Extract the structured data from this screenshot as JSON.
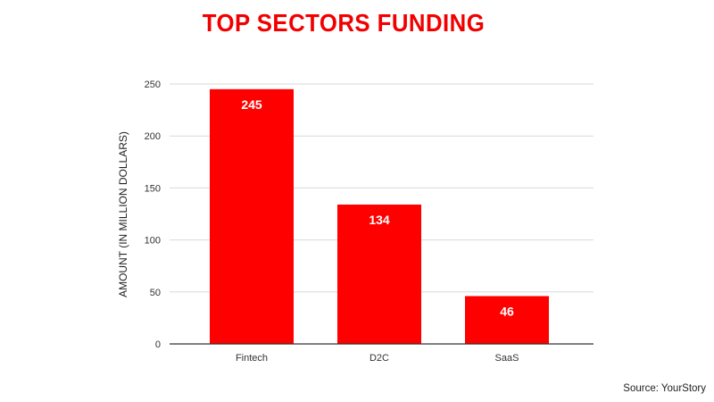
{
  "title": "TOP SECTORS FUNDING",
  "source": "Source: YourStory",
  "colors": {
    "bar": "#ff0000",
    "title": "#f20000",
    "grid": "#d9d9d9",
    "axis": "#333333"
  },
  "chart_data": {
    "type": "bar",
    "title": "TOP SECTORS FUNDING",
    "xlabel": "",
    "ylabel": "AMOUNT (IN MILLION DOLLARS)",
    "categories": [
      "Fintech",
      "D2C",
      "SaaS"
    ],
    "values": [
      245,
      134,
      46
    ],
    "data_labels": [
      "245",
      "134",
      "46"
    ],
    "ylim": [
      0,
      250
    ],
    "yticks": [
      0,
      50,
      100,
      150,
      200,
      250
    ],
    "grid": true,
    "legend": "none"
  }
}
